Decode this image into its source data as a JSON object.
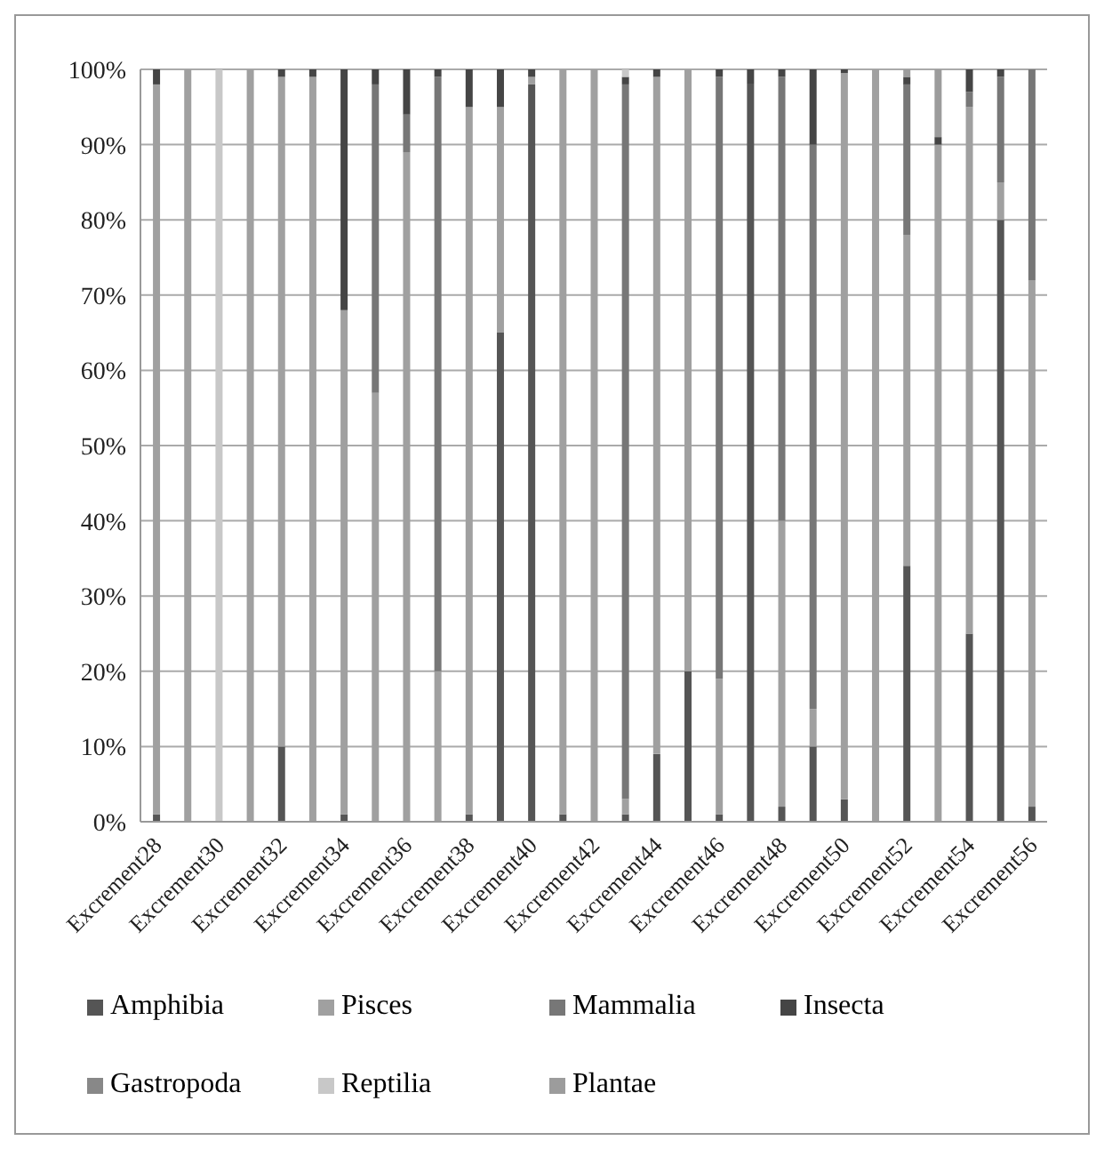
{
  "chart_data": {
    "type": "bar",
    "stacked": true,
    "categories": [
      "Excrement28",
      null,
      "Excrement30",
      null,
      "Excrement32",
      null,
      "Excrement34",
      null,
      "Excrement36",
      null,
      "Excrement38",
      null,
      "Excrement40",
      null,
      "Excrement42",
      null,
      "Excrement44",
      null,
      "Excrement46",
      null,
      "Excrement48",
      null,
      "Excrement50",
      null,
      "Excrement52",
      null,
      "Excrement54",
      null,
      "Excrement56"
    ],
    "series": [
      {
        "name": "Amphibia",
        "color": "#555555",
        "values": [
          1,
          0,
          0,
          0,
          10,
          0,
          1,
          0,
          0,
          0,
          1,
          65,
          98,
          1,
          0,
          1,
          9,
          20,
          1,
          98,
          2,
          10,
          3,
          0,
          34,
          0,
          25,
          80,
          2
        ]
      },
      {
        "name": "Pisces",
        "color": "#a0a0a0",
        "values": [
          97,
          100,
          0,
          100,
          89,
          99,
          67,
          57,
          89,
          20,
          94,
          30,
          1,
          99,
          100,
          2,
          90,
          80,
          18,
          0,
          38,
          5,
          96.5,
          100,
          44,
          90,
          70,
          5,
          70
        ]
      },
      {
        "name": "Mammalia",
        "color": "#777777",
        "values": [
          0,
          0,
          0,
          0,
          0,
          0,
          0,
          41,
          5,
          79,
          0,
          0,
          0,
          0,
          0,
          95,
          0,
          0,
          80,
          0,
          59,
          75,
          0,
          0,
          20,
          0,
          2,
          14,
          28
        ]
      },
      {
        "name": "Insecta",
        "color": "#454545",
        "values": [
          2,
          0,
          0,
          0,
          1,
          1,
          32,
          2,
          6,
          1,
          5,
          5,
          1,
          0,
          0,
          1,
          1,
          0,
          1,
          2,
          1,
          10,
          0.5,
          0,
          1,
          1,
          3,
          1,
          0
        ]
      },
      {
        "name": "Gastropoda",
        "color": "#888888",
        "values": [
          0,
          0,
          0,
          0,
          0,
          0,
          0,
          0,
          0,
          0,
          0,
          0,
          0,
          0,
          0,
          0,
          0,
          0,
          0,
          0,
          0,
          0,
          0,
          0,
          0,
          0,
          0,
          0,
          0
        ]
      },
      {
        "name": "Reptilia",
        "color": "#c8c8c8",
        "values": [
          0,
          0,
          100,
          0,
          0,
          0,
          0,
          0,
          0,
          0,
          0,
          0,
          0,
          0,
          0,
          1,
          0,
          0,
          0,
          0,
          0,
          0,
          0,
          0,
          0,
          0,
          0,
          0,
          0
        ]
      },
      {
        "name": "Plantae",
        "color": "#9c9c9c",
        "values": [
          0,
          0,
          0,
          0,
          0,
          0,
          0,
          0,
          0,
          0,
          0,
          0,
          0,
          0,
          0,
          0,
          0,
          0,
          0,
          0,
          0,
          0,
          0,
          0,
          1,
          9,
          0,
          0,
          0
        ]
      }
    ],
    "ylim": [
      0,
      100
    ],
    "yticks": [
      {
        "value": 0,
        "label": "0%"
      },
      {
        "value": 10,
        "label": "10%"
      },
      {
        "value": 20,
        "label": "20%"
      },
      {
        "value": 30,
        "label": "30%"
      },
      {
        "value": 40,
        "label": "40%"
      },
      {
        "value": 50,
        "label": "50%"
      },
      {
        "value": 60,
        "label": "60%"
      },
      {
        "value": 70,
        "label": "70%"
      },
      {
        "value": 80,
        "label": "80%"
      },
      {
        "value": 90,
        "label": "90%"
      },
      {
        "value": 100,
        "label": "100%"
      }
    ],
    "grid": "y",
    "legend": "bottom"
  }
}
